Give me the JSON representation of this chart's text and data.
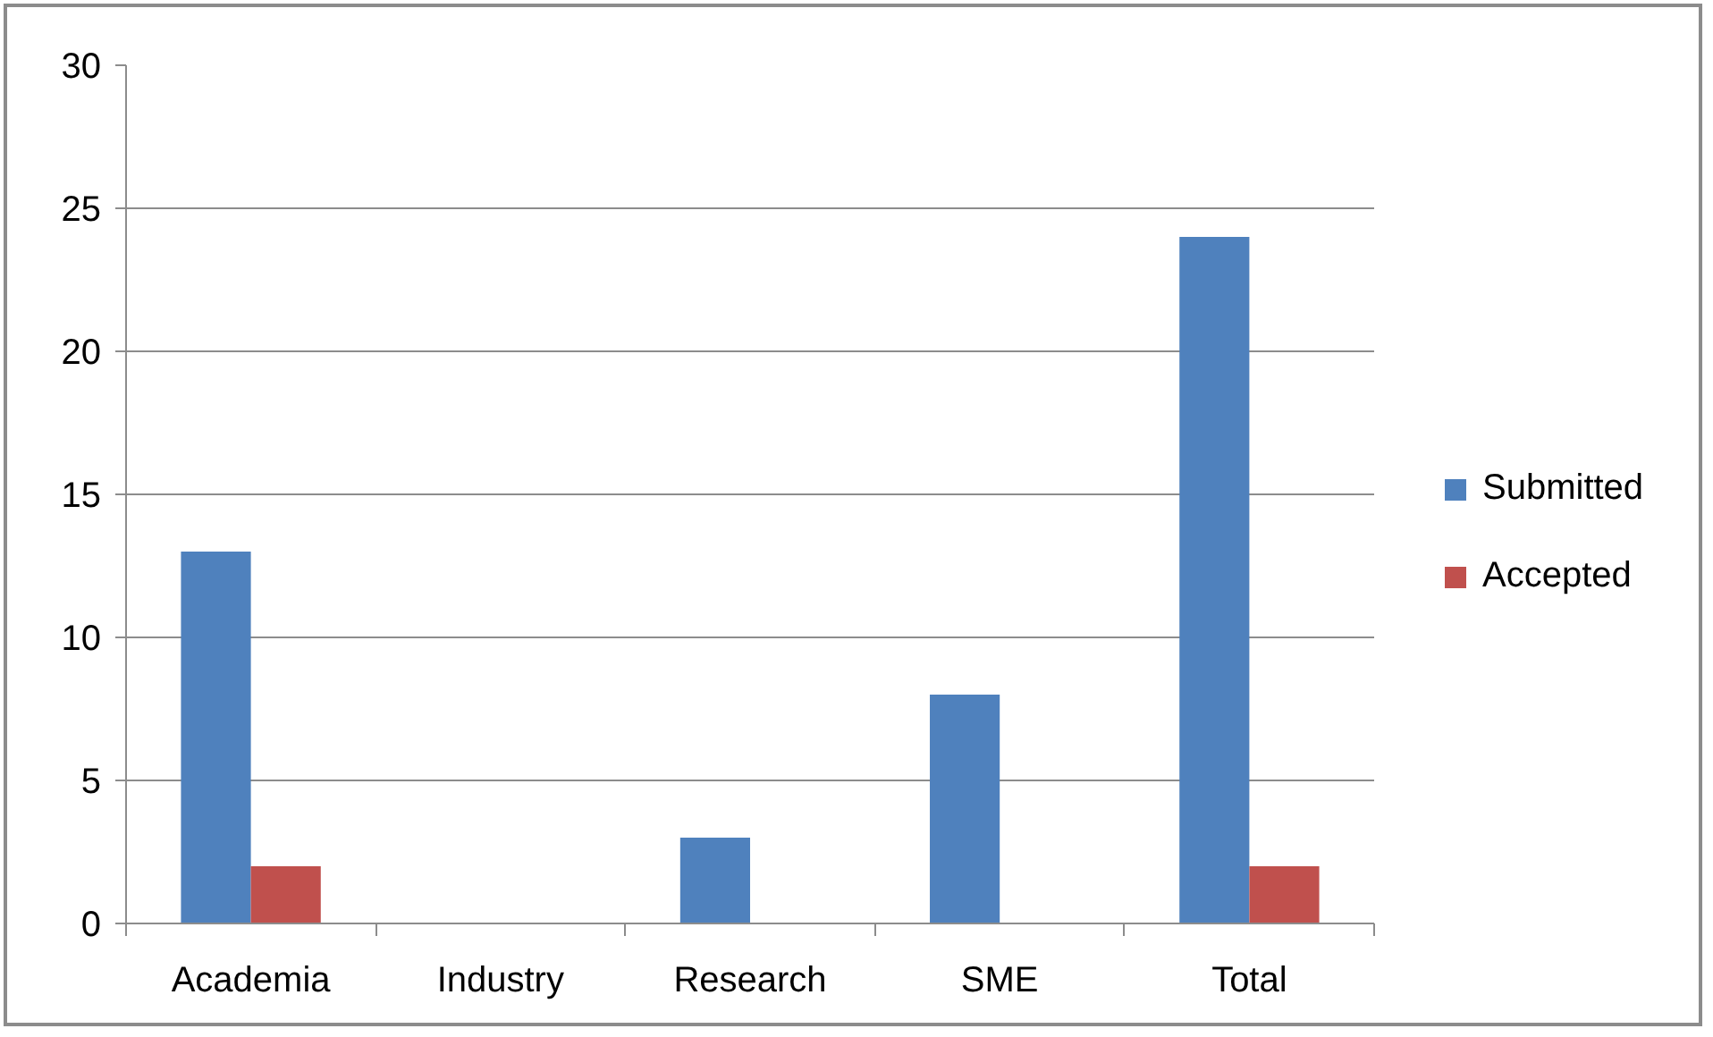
{
  "chart_data": {
    "type": "bar",
    "categories": [
      "Academia",
      "Industry",
      "Research",
      "SME",
      "Total"
    ],
    "series": [
      {
        "name": "Submitted",
        "color": "#4f81bd",
        "values": [
          13,
          0,
          3,
          8,
          24
        ]
      },
      {
        "name": "Accepted",
        "color": "#c0504d",
        "values": [
          2,
          0,
          0,
          0,
          2
        ]
      }
    ],
    "ylim": [
      0,
      30
    ],
    "yticks": [
      0,
      5,
      10,
      15,
      20,
      25,
      30
    ],
    "grid": "y",
    "legend": "right"
  }
}
